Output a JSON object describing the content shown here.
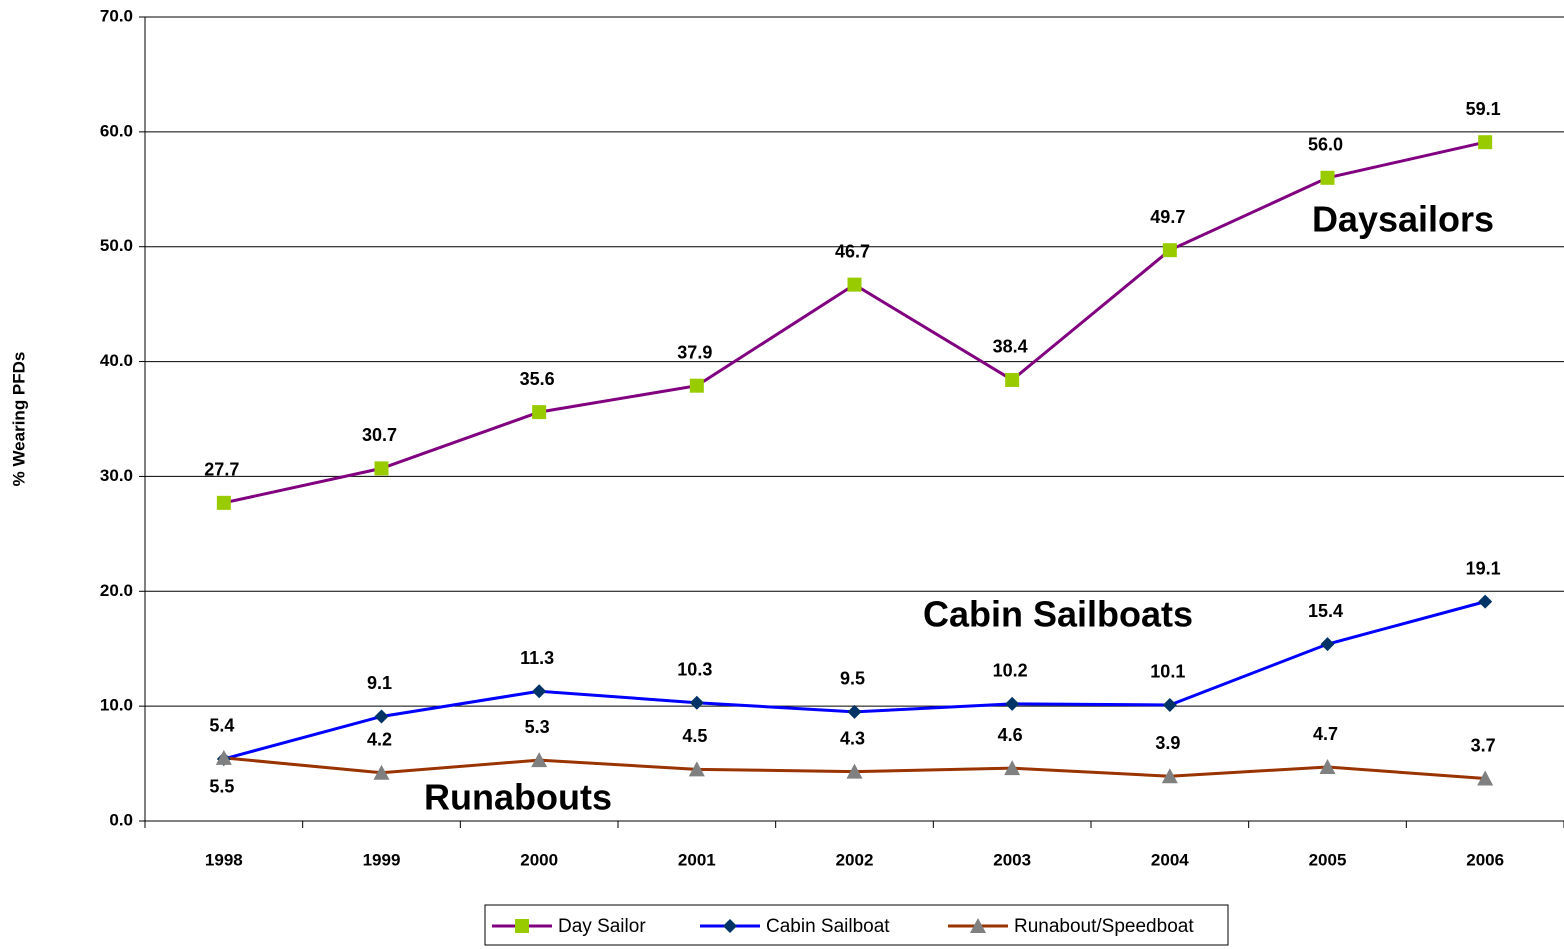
{
  "chart_data": {
    "type": "line",
    "y_label": "% Wearing PFDs",
    "categories": [
      "1998",
      "1999",
      "2000",
      "2001",
      "2002",
      "2003",
      "2004",
      "2005",
      "2006"
    ],
    "series": [
      {
        "name": "Day Sailor",
        "color": "#800080",
        "marker_color": "#99cc00",
        "marker": "square",
        "values": [
          27.7,
          30.7,
          35.6,
          37.9,
          46.7,
          38.4,
          49.7,
          56.0,
          59.1
        ],
        "value_labels": [
          "27.7",
          "30.7",
          "35.6",
          "37.9",
          "46.7",
          "38.4",
          "49.7",
          "56.0",
          "59.1"
        ]
      },
      {
        "name": "Cabin Sailboat",
        "color": "#0000ff",
        "marker_color": "#003366",
        "marker": "diamond",
        "values": [
          5.4,
          9.1,
          11.3,
          10.3,
          9.5,
          10.2,
          10.1,
          15.4,
          19.1
        ],
        "value_labels": [
          "5.4",
          "9.1",
          "11.3",
          "10.3",
          "9.5",
          "10.2",
          "10.1",
          "15.4",
          "19.1"
        ]
      },
      {
        "name": "Runabout/Speedboat",
        "color": "#993300",
        "marker_color": "#808080",
        "marker": "triangle",
        "values": [
          5.5,
          4.2,
          5.3,
          4.5,
          4.3,
          4.6,
          3.9,
          4.7,
          3.7
        ],
        "value_labels": [
          "5.5",
          "4.2",
          "5.3",
          "4.5",
          "4.3",
          "4.6",
          "3.9",
          "4.7",
          "3.7"
        ]
      }
    ],
    "annotations": [
      "Daysailors",
      "Cabin Sailboats",
      "Runabouts"
    ],
    "ylim": [
      0,
      70
    ],
    "yticks": [
      {
        "value": 0,
        "label": "0.0"
      },
      {
        "value": 10,
        "label": "10.0"
      },
      {
        "value": 20,
        "label": "20.0"
      },
      {
        "value": 30,
        "label": "30.0"
      },
      {
        "value": 40,
        "label": "40.0"
      },
      {
        "value": 50,
        "label": "50.0"
      },
      {
        "value": 60,
        "label": "60.0"
      },
      {
        "value": 70,
        "label": "70.0"
      }
    ],
    "grid": true,
    "legend": "bottom"
  }
}
